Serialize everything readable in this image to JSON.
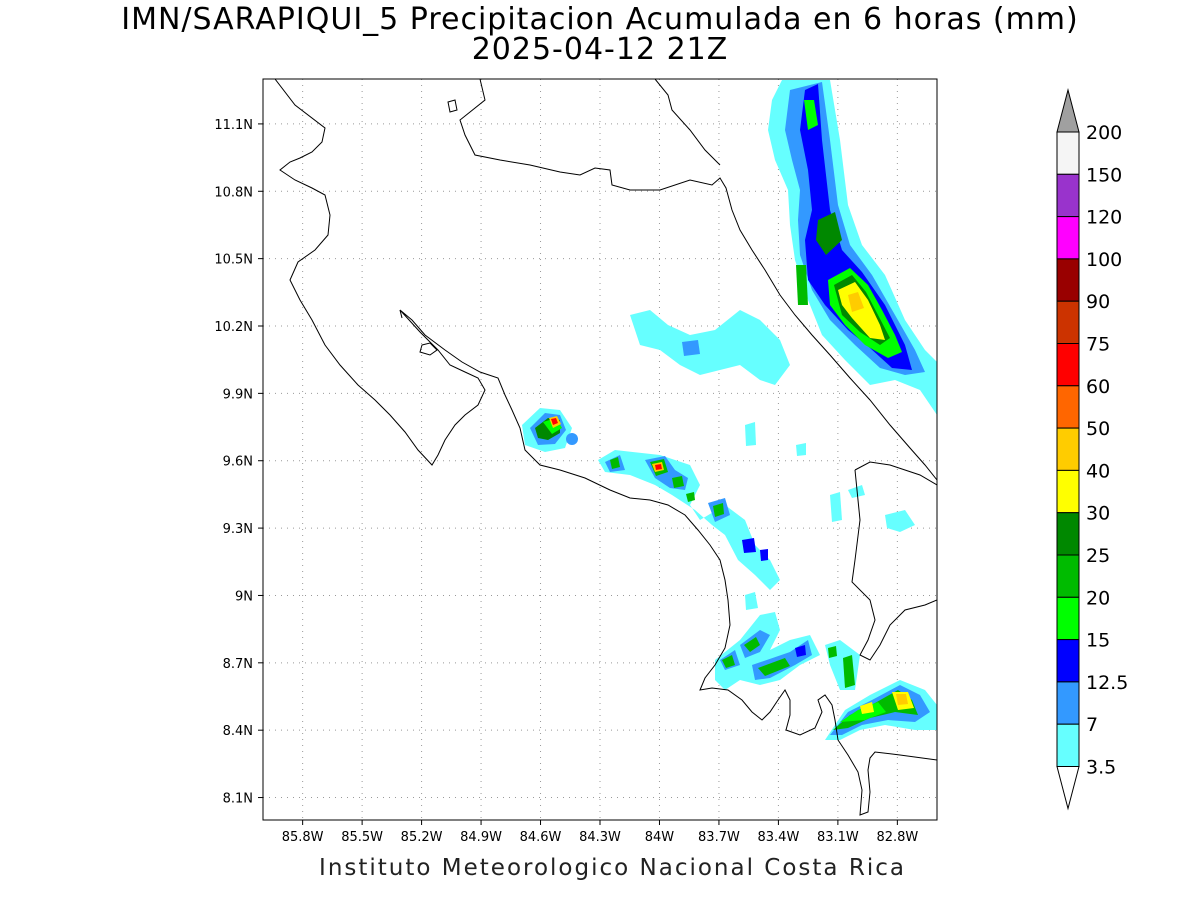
{
  "title": {
    "line1": "IMN/SARAPIQUI_5 Precipitacion Acumulada en 6 horas (mm)",
    "line2": "2025-04-12 21Z"
  },
  "credit": "Instituto Meteorologico Nacional Costa Rica",
  "map": {
    "lon_range": [
      -86.0,
      -82.6
    ],
    "lat_range": [
      8.0,
      11.3
    ],
    "lon_ticks": [
      "85.8W",
      "85.5W",
      "85.2W",
      "84.9W",
      "84.6W",
      "84.3W",
      "84W",
      "83.7W",
      "83.4W",
      "83.1W",
      "82.8W"
    ],
    "lat_ticks": [
      "11.1N",
      "10.8N",
      "10.5N",
      "10.2N",
      "9.9N",
      "9.6N",
      "9.3N",
      "9N",
      "8.7N",
      "8.4N",
      "8.1N"
    ],
    "grid": "dotted"
  },
  "colorbar": {
    "labels": [
      "200",
      "150",
      "120",
      "100",
      "90",
      "75",
      "60",
      "50",
      "40",
      "30",
      "25",
      "20",
      "15",
      "12.5",
      "7",
      "3.5"
    ],
    "colors": [
      "#a0a0a0",
      "#f5f5f5",
      "#9933cc",
      "#ff00ff",
      "#990000",
      "#cc3300",
      "#ff0000",
      "#ff6600",
      "#ffcc00",
      "#ffff00",
      "#008800",
      "#00bb00",
      "#00ff00",
      "#0000ff",
      "#3399ff",
      "#66ffff"
    ]
  }
}
